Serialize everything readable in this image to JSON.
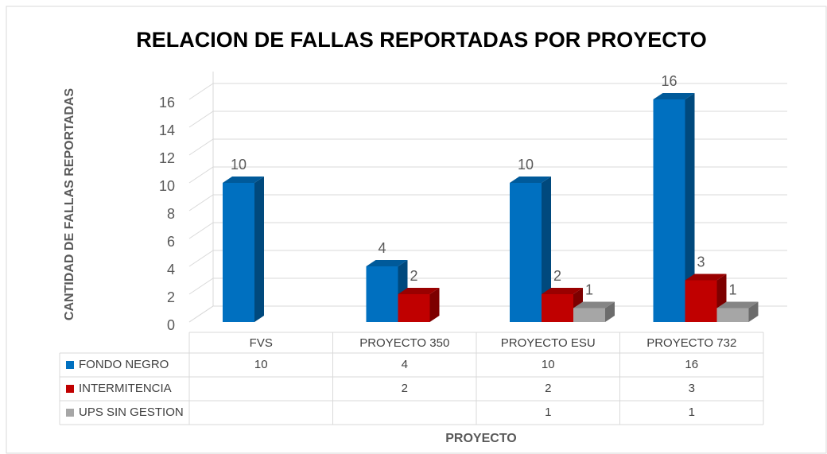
{
  "chart_data": {
    "type": "bar3d",
    "title": "RELACION DE FALLAS REPORTADAS POR PROYECTO",
    "y_label": "CANTIDAD DE FALLAS REPORTADAS",
    "x_label": "PROYECTO",
    "categories": [
      "FVS",
      "PROYECTO 350",
      "PROYECTO ESU",
      "PROYECTO 732"
    ],
    "series": [
      {
        "name": "FONDO NEGRO",
        "color": "#0070c0",
        "values": [
          10,
          4,
          10,
          16
        ]
      },
      {
        "name": "INTERMITENCIA",
        "color": "#c00000",
        "values": [
          null,
          2,
          2,
          3
        ]
      },
      {
        "name": "UPS SIN GESTION",
        "color": "#a6a6a6",
        "values": [
          null,
          null,
          1,
          1
        ]
      }
    ],
    "ylim": [
      0,
      18
    ],
    "yticks": [
      0,
      2,
      4,
      6,
      8,
      10,
      12,
      14,
      16
    ],
    "grid": true,
    "data_table": true
  }
}
